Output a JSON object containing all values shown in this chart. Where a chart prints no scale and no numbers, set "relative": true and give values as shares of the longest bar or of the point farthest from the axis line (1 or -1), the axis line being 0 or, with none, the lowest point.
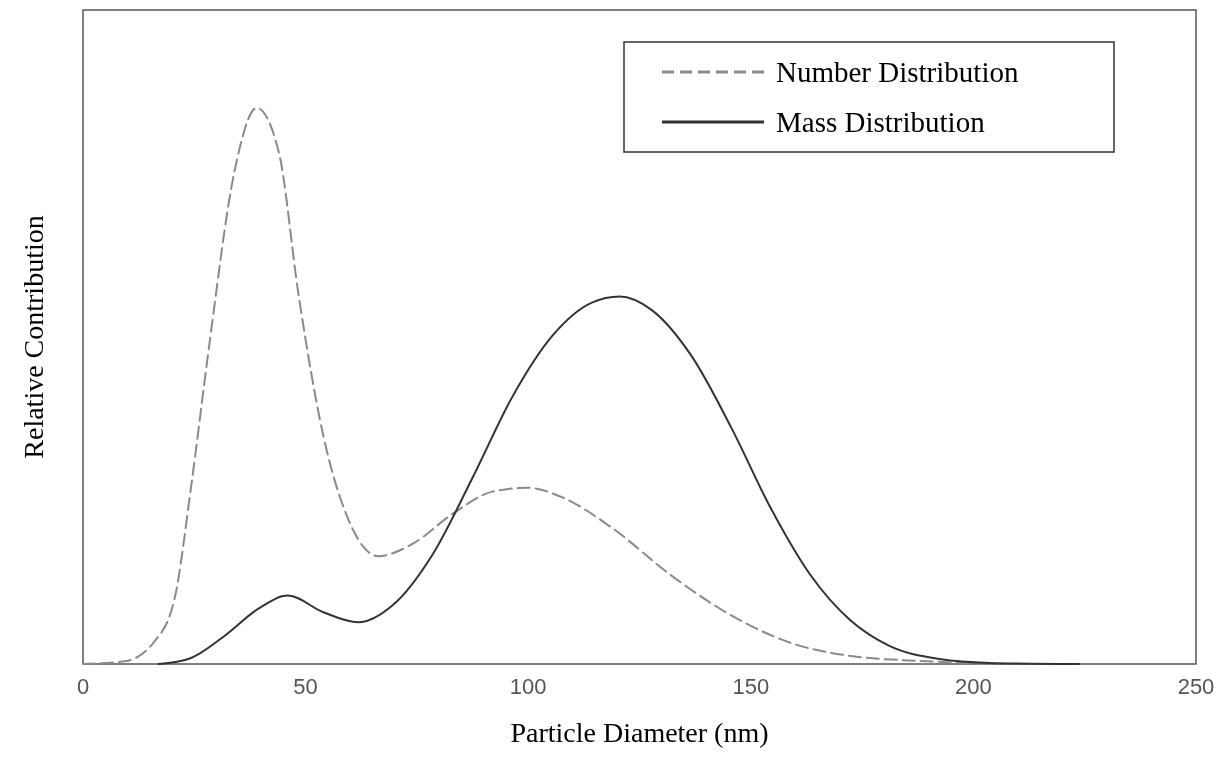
{
  "chart_data": {
    "type": "line",
    "xlabel": "Particle Diameter (nm)",
    "ylabel": "Relative Contribution",
    "relative": true,
    "xlim": [
      0,
      250
    ],
    "xticks": [
      0,
      50,
      100,
      150,
      200,
      250
    ],
    "legend": "top right",
    "grid": false,
    "marker": "none",
    "series": [
      {
        "name": "Number Distribution",
        "color": "#8a8a8a",
        "line_style": "dashed",
        "x": [
          0,
          9.4,
          16,
          20.5,
          24.3,
          28.3,
          34,
          39,
          44,
          48.4,
          54,
          59.6,
          66.3,
          74,
          83,
          92,
          100,
          107.6,
          118.8,
          132,
          145.5,
          159,
          172,
          192,
          203.6
        ],
        "values": [
          0,
          0.005,
          0.04,
          0.115,
          0.32,
          0.57,
          0.885,
          1,
          0.92,
          0.665,
          0.41,
          0.26,
          0.194,
          0.216,
          0.27,
          0.31,
          0.317,
          0.3,
          0.245,
          0.16,
          0.088,
          0.038,
          0.015,
          0.004,
          0
        ]
      },
      {
        "name": "Mass Distribution",
        "color": "#333333",
        "line_style": "solid",
        "x": [
          17,
          24,
          31.7,
          39.5,
          46,
          54,
          61.8,
          69.6,
          78.6,
          87.5,
          96.4,
          105.4,
          114.3,
          120.5,
          127.7,
          136.6,
          145.5,
          154.5,
          163.4,
          172.3,
          181,
          192.4,
          203.6,
          223.7
        ],
        "values": [
          0,
          0.01,
          0.05,
          0.1,
          0.123,
          0.093,
          0.075,
          0.106,
          0.198,
          0.335,
          0.48,
          0.59,
          0.65,
          0.661,
          0.637,
          0.555,
          0.427,
          0.28,
          0.16,
          0.079,
          0.033,
          0.009,
          0.002,
          0
        ]
      }
    ]
  }
}
